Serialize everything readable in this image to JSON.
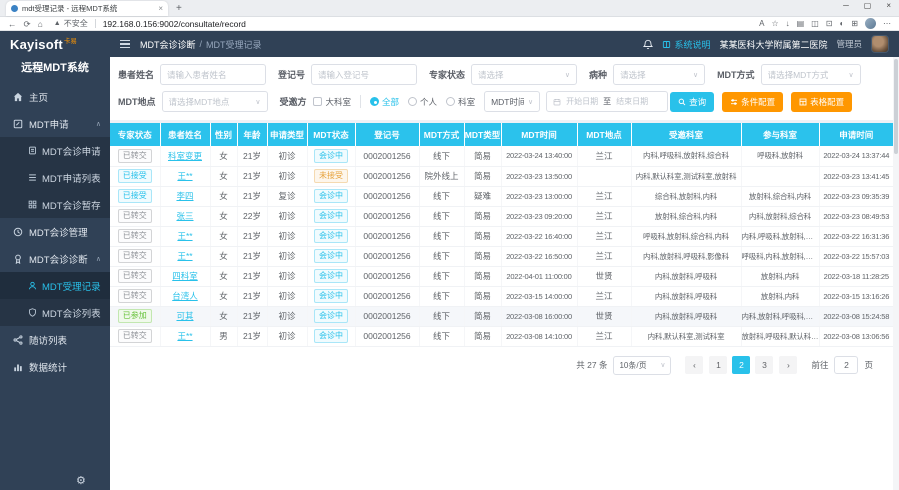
{
  "colors": {
    "accent_cyan": "#29c1ea",
    "button_orange": "#ff9700",
    "sidebar_bg": "#304156",
    "submenu_bg": "#263445",
    "table_header_bg": "#2bc2ec",
    "badge_green": "#67c23a",
    "badge_warn": "#e6a23c"
  },
  "icons": {
    "back": "←",
    "refresh": "⟳",
    "home": "⌂",
    "warning": "▲",
    "translate": "A",
    "star": "☆",
    "download": "↓",
    "collections": "▤",
    "split": "◫",
    "screenshot": "⊡",
    "copilot": "◐",
    "extensions": "⊞",
    "more": "⋯",
    "tab_close": "×",
    "minimize": "─",
    "maximize": "▢",
    "close": "×",
    "chevron_up": "∧",
    "chevron_down": "∨",
    "prev": "‹",
    "next": "›",
    "gear": "⚙"
  },
  "browser": {
    "tab_title": "mdt受理记录 - 远程MDT系统",
    "new_tab": "+",
    "security_text": "不安全",
    "url": "192.168.0.156:9002/consultate/record"
  },
  "header": {
    "logo": "Kayisoft",
    "logo_suffix": "卡易",
    "breadcrumb_section": "MDT会诊诊断",
    "breadcrumb_sep": "/",
    "breadcrumb_page": "MDT受理记录",
    "system_help": "系统说明",
    "hospital": "某某医科大学附属第二医院",
    "role": "管理员"
  },
  "sidebar": {
    "title": "远程MDT系统",
    "items": [
      {
        "label": "主页"
      },
      {
        "label": "MDT申请",
        "children": [
          {
            "label": "MDT会诊申请"
          },
          {
            "label": "MDT申请列表"
          },
          {
            "label": "MDT会诊暂存"
          }
        ]
      },
      {
        "label": "MDT会诊管理"
      },
      {
        "label": "MDT会诊诊断",
        "children": [
          {
            "label": "MDT受理记录",
            "active": true
          },
          {
            "label": "MDT会诊列表"
          }
        ]
      },
      {
        "label": "随访列表"
      },
      {
        "label": "数据统计"
      }
    ]
  },
  "filters": {
    "patient_name_label": "患者姓名",
    "patient_name_placeholder": "请输入患者姓名",
    "reg_no_label": "登记号",
    "reg_no_placeholder": "请输入登记号",
    "expert_status_label": "专家状态",
    "expert_status_placeholder": "请选择",
    "disease_label": "病种",
    "disease_placeholder": "请选择",
    "mdt_mode_label": "MDT方式",
    "mdt_mode_placeholder": "请选择MDT方式",
    "mdt_location_label": "MDT地点",
    "mdt_location_placeholder": "请选择MDT地点",
    "invitee_label": "受邀方",
    "invitee_checkbox": "大科室",
    "invitee_options": [
      {
        "label": "全部",
        "selected": true
      },
      {
        "label": "个人",
        "selected": false
      },
      {
        "label": "科室",
        "selected": false
      }
    ],
    "time_select": "MDT时间",
    "date_start_placeholder": "开始日期",
    "date_to": "至",
    "date_end_placeholder": "结束日期",
    "search_button": "查询",
    "condition_config_button": "条件配置",
    "table_config_button": "表格配置"
  },
  "table": {
    "columns": [
      "专家状态",
      "患者姓名",
      "性别",
      "年龄",
      "申请类型",
      "MDT状态",
      "登记号",
      "MDT方式",
      "MDT类型",
      "MDT时间",
      "MDT地点",
      "受邀科室",
      "参与科室",
      "申请时间"
    ],
    "rows": [
      {
        "expert_status": "已转交",
        "status_type": "gray",
        "name": "科室变更",
        "gender": "女",
        "age": "21岁",
        "apply_type": "初诊",
        "mdt_status": "会诊中",
        "mdt_status_type": "cyan",
        "reg_no": "0002001256",
        "mdt_mode": "线下",
        "mdt_type": "简易",
        "mdt_time": "2022-03-24 13:40:00",
        "mdt_location": "兰江",
        "invited_depts": "内科,呼吸科,放射科,综合科",
        "participating_depts": "呼吸科,放射科",
        "apply_time": "2022-03-24 13:37:44"
      },
      {
        "expert_status": "已接受",
        "status_type": "cyan",
        "name": "王**",
        "gender": "女",
        "age": "21岁",
        "apply_type": "初诊",
        "mdt_status": "未接受",
        "mdt_status_type": "orange",
        "reg_no": "0002001256",
        "mdt_mode": "院外线上",
        "mdt_type": "简易",
        "mdt_time": "2022-03-23 13:50:00",
        "mdt_location": "",
        "invited_depts": "内科,默认科室,测试科室,放射科",
        "participating_depts": "",
        "apply_time": "2022-03-23 13:41:45"
      },
      {
        "expert_status": "已接受",
        "status_type": "cyan",
        "name": "李四",
        "gender": "女",
        "age": "21岁",
        "apply_type": "复诊",
        "mdt_status": "会诊中",
        "mdt_status_type": "cyan",
        "reg_no": "0002001256",
        "mdt_mode": "线下",
        "mdt_type": "疑难",
        "mdt_time": "2022-03-23 13:00:00",
        "mdt_location": "兰江",
        "invited_depts": "综合科,放射科,内科",
        "participating_depts": "放射科,综合科,内科",
        "apply_time": "2022-03-23 09:35:39"
      },
      {
        "expert_status": "已转交",
        "status_type": "gray",
        "name": "张三",
        "gender": "女",
        "age": "22岁",
        "apply_type": "初诊",
        "mdt_status": "会诊中",
        "mdt_status_type": "cyan",
        "reg_no": "0002001256",
        "mdt_mode": "线下",
        "mdt_type": "简易",
        "mdt_time": "2022-03-23 09:20:00",
        "mdt_location": "兰江",
        "invited_depts": "放射科,综合科,内科",
        "participating_depts": "内科,放射科,综合科",
        "apply_time": "2022-03-23 08:49:53"
      },
      {
        "expert_status": "已转交",
        "status_type": "gray",
        "name": "王**",
        "gender": "女",
        "age": "21岁",
        "apply_type": "初诊",
        "mdt_status": "会诊中",
        "mdt_status_type": "cyan",
        "reg_no": "0002001256",
        "mdt_mode": "线下",
        "mdt_type": "简易",
        "mdt_time": "2022-03-22 16:40:00",
        "mdt_location": "兰江",
        "invited_depts": "呼吸科,放射科,综合科,内科",
        "participating_depts": "内科,呼吸科,放射科,综合科",
        "apply_time": "2022-03-22 16:31:36"
      },
      {
        "expert_status": "已转交",
        "status_type": "gray",
        "name": "王**",
        "gender": "女",
        "age": "21岁",
        "apply_type": "初诊",
        "mdt_status": "会诊中",
        "mdt_status_type": "cyan",
        "reg_no": "0002001256",
        "mdt_mode": "线下",
        "mdt_type": "简易",
        "mdt_time": "2022-03-22 16:50:00",
        "mdt_location": "兰江",
        "invited_depts": "内科,放射科,呼吸科,影像科",
        "participating_depts": "呼吸科,内科,放射科,影像科",
        "apply_time": "2022-03-22 15:57:03"
      },
      {
        "expert_status": "已转交",
        "status_type": "gray",
        "name": "四科室",
        "gender": "女",
        "age": "21岁",
        "apply_type": "初诊",
        "mdt_status": "会诊中",
        "mdt_status_type": "cyan",
        "reg_no": "0002001256",
        "mdt_mode": "线下",
        "mdt_type": "简易",
        "mdt_time": "2022-04-01 11:00:00",
        "mdt_location": "世贤",
        "invited_depts": "内科,放射科,呼吸科",
        "participating_depts": "放射科,内科",
        "apply_time": "2022-03-18 11:28:25"
      },
      {
        "expert_status": "已转交",
        "status_type": "gray",
        "name": "台湾人",
        "gender": "女",
        "age": "21岁",
        "apply_type": "初诊",
        "mdt_status": "会诊中",
        "mdt_status_type": "cyan",
        "reg_no": "0002001256",
        "mdt_mode": "线下",
        "mdt_type": "简易",
        "mdt_time": "2022-03-15 14:00:00",
        "mdt_location": "兰江",
        "invited_depts": "内科,放射科,呼吸科",
        "participating_depts": "放射科,内科",
        "apply_time": "2022-03-15 13:16:26"
      },
      {
        "expert_status": "已参加",
        "status_type": "green",
        "name": "可其",
        "gender": "女",
        "age": "21岁",
        "apply_type": "初诊",
        "mdt_status": "会诊中",
        "mdt_status_type": "cyan",
        "reg_no": "0002001256",
        "mdt_mode": "线下",
        "mdt_type": "简易",
        "mdt_time": "2022-03-08 16:00:00",
        "mdt_location": "世贤",
        "invited_depts": "内科,放射科,呼吸科",
        "participating_depts": "内科,放射科,呼吸科,测试科室",
        "apply_time": "2022-03-08 15:24:58",
        "highlight": true
      },
      {
        "expert_status": "已转交",
        "status_type": "gray",
        "name": "王**",
        "gender": "男",
        "age": "21岁",
        "apply_type": "初诊",
        "mdt_status": "会诊中",
        "mdt_status_type": "cyan",
        "reg_no": "0002001256",
        "mdt_mode": "线下",
        "mdt_type": "简易",
        "mdt_time": "2022-03-08 14:10:00",
        "mdt_location": "兰江",
        "invited_depts": "内科,默认科室,测试科室",
        "participating_depts": "放射科,呼吸科,默认科室,测...",
        "apply_time": "2022-03-08 13:06:56"
      }
    ]
  },
  "pagination": {
    "total_text": "共 27 条",
    "page_size": "10条/页",
    "pages": [
      "1",
      "2",
      "3"
    ],
    "current_page": "2",
    "goto_label": "前往",
    "goto_value": "2",
    "goto_suffix": "页"
  }
}
